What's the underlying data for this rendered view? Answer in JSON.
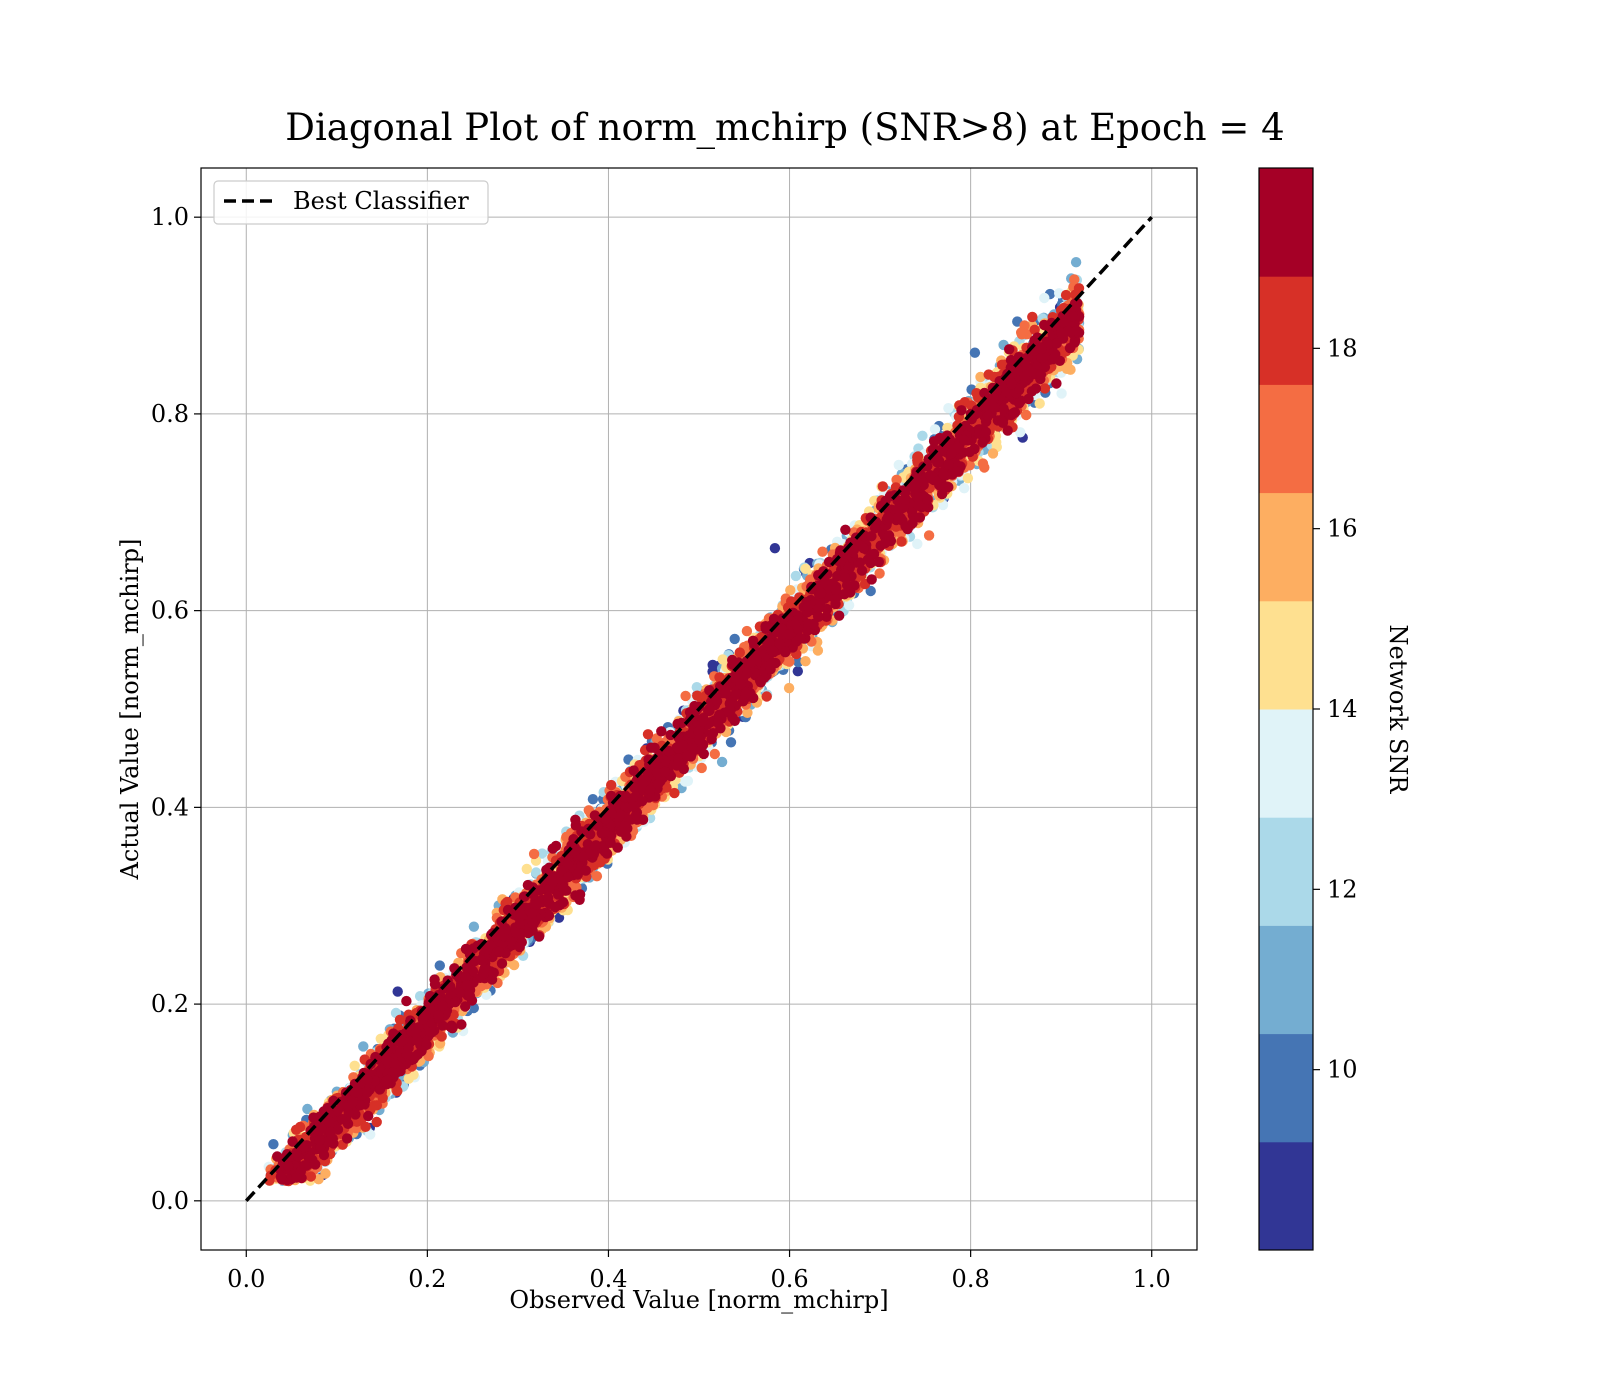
{
  "chart_data": {
    "type": "scatter",
    "title": "Diagonal Plot of norm_mchirp (SNR>8) at Epoch = 4",
    "xlabel": "Observed Value [norm_mchirp]",
    "ylabel": "Actual Value [norm_mchirp]",
    "xlim": [
      -0.05,
      1.05
    ],
    "ylim": [
      -0.05,
      1.05
    ],
    "x_ticks": [
      "0.0",
      "0.2",
      "0.4",
      "0.6",
      "0.8",
      "1.0"
    ],
    "y_ticks": [
      "0.0",
      "0.2",
      "0.4",
      "0.6",
      "0.8",
      "1.0"
    ],
    "x_tick_values": [
      0.0,
      0.2,
      0.4,
      0.6,
      0.8,
      1.0
    ],
    "y_tick_values": [
      0.0,
      0.2,
      0.4,
      0.6,
      0.8,
      1.0
    ],
    "grid": true,
    "legend": {
      "position": "upper-left",
      "entries": [
        "Best Classifier"
      ]
    },
    "reference_line": {
      "name": "Best Classifier",
      "x": [
        0.0,
        1.0
      ],
      "y": [
        0.0,
        1.0
      ],
      "style": "dashed",
      "color": "#000000"
    },
    "colorbar": {
      "label": "Network SNR",
      "range": [
        8,
        20
      ],
      "tick_values": [
        10,
        12,
        14,
        16,
        18
      ],
      "ticks": [
        "10",
        "12",
        "14",
        "16",
        "18"
      ],
      "colors": [
        "#313695",
        "#4575b4",
        "#74add1",
        "#abd9e9",
        "#e0f3f8",
        "#fee090",
        "#fdae61",
        "#f46d43",
        "#d73027",
        "#a50026"
      ]
    },
    "point_density": {
      "x_range": [
        0.03,
        0.91
      ],
      "y_range": [
        0.0,
        1.0
      ],
      "description_points": [
        {
          "x": 0.05,
          "y": 0.05
        },
        {
          "x": 0.2,
          "y": 0.2
        },
        {
          "x": 0.4,
          "y": 0.4
        },
        {
          "x": 0.6,
          "y": 0.6
        },
        {
          "x": 0.8,
          "y": 0.8
        },
        {
          "x": 0.88,
          "y": 0.95
        }
      ]
    }
  }
}
